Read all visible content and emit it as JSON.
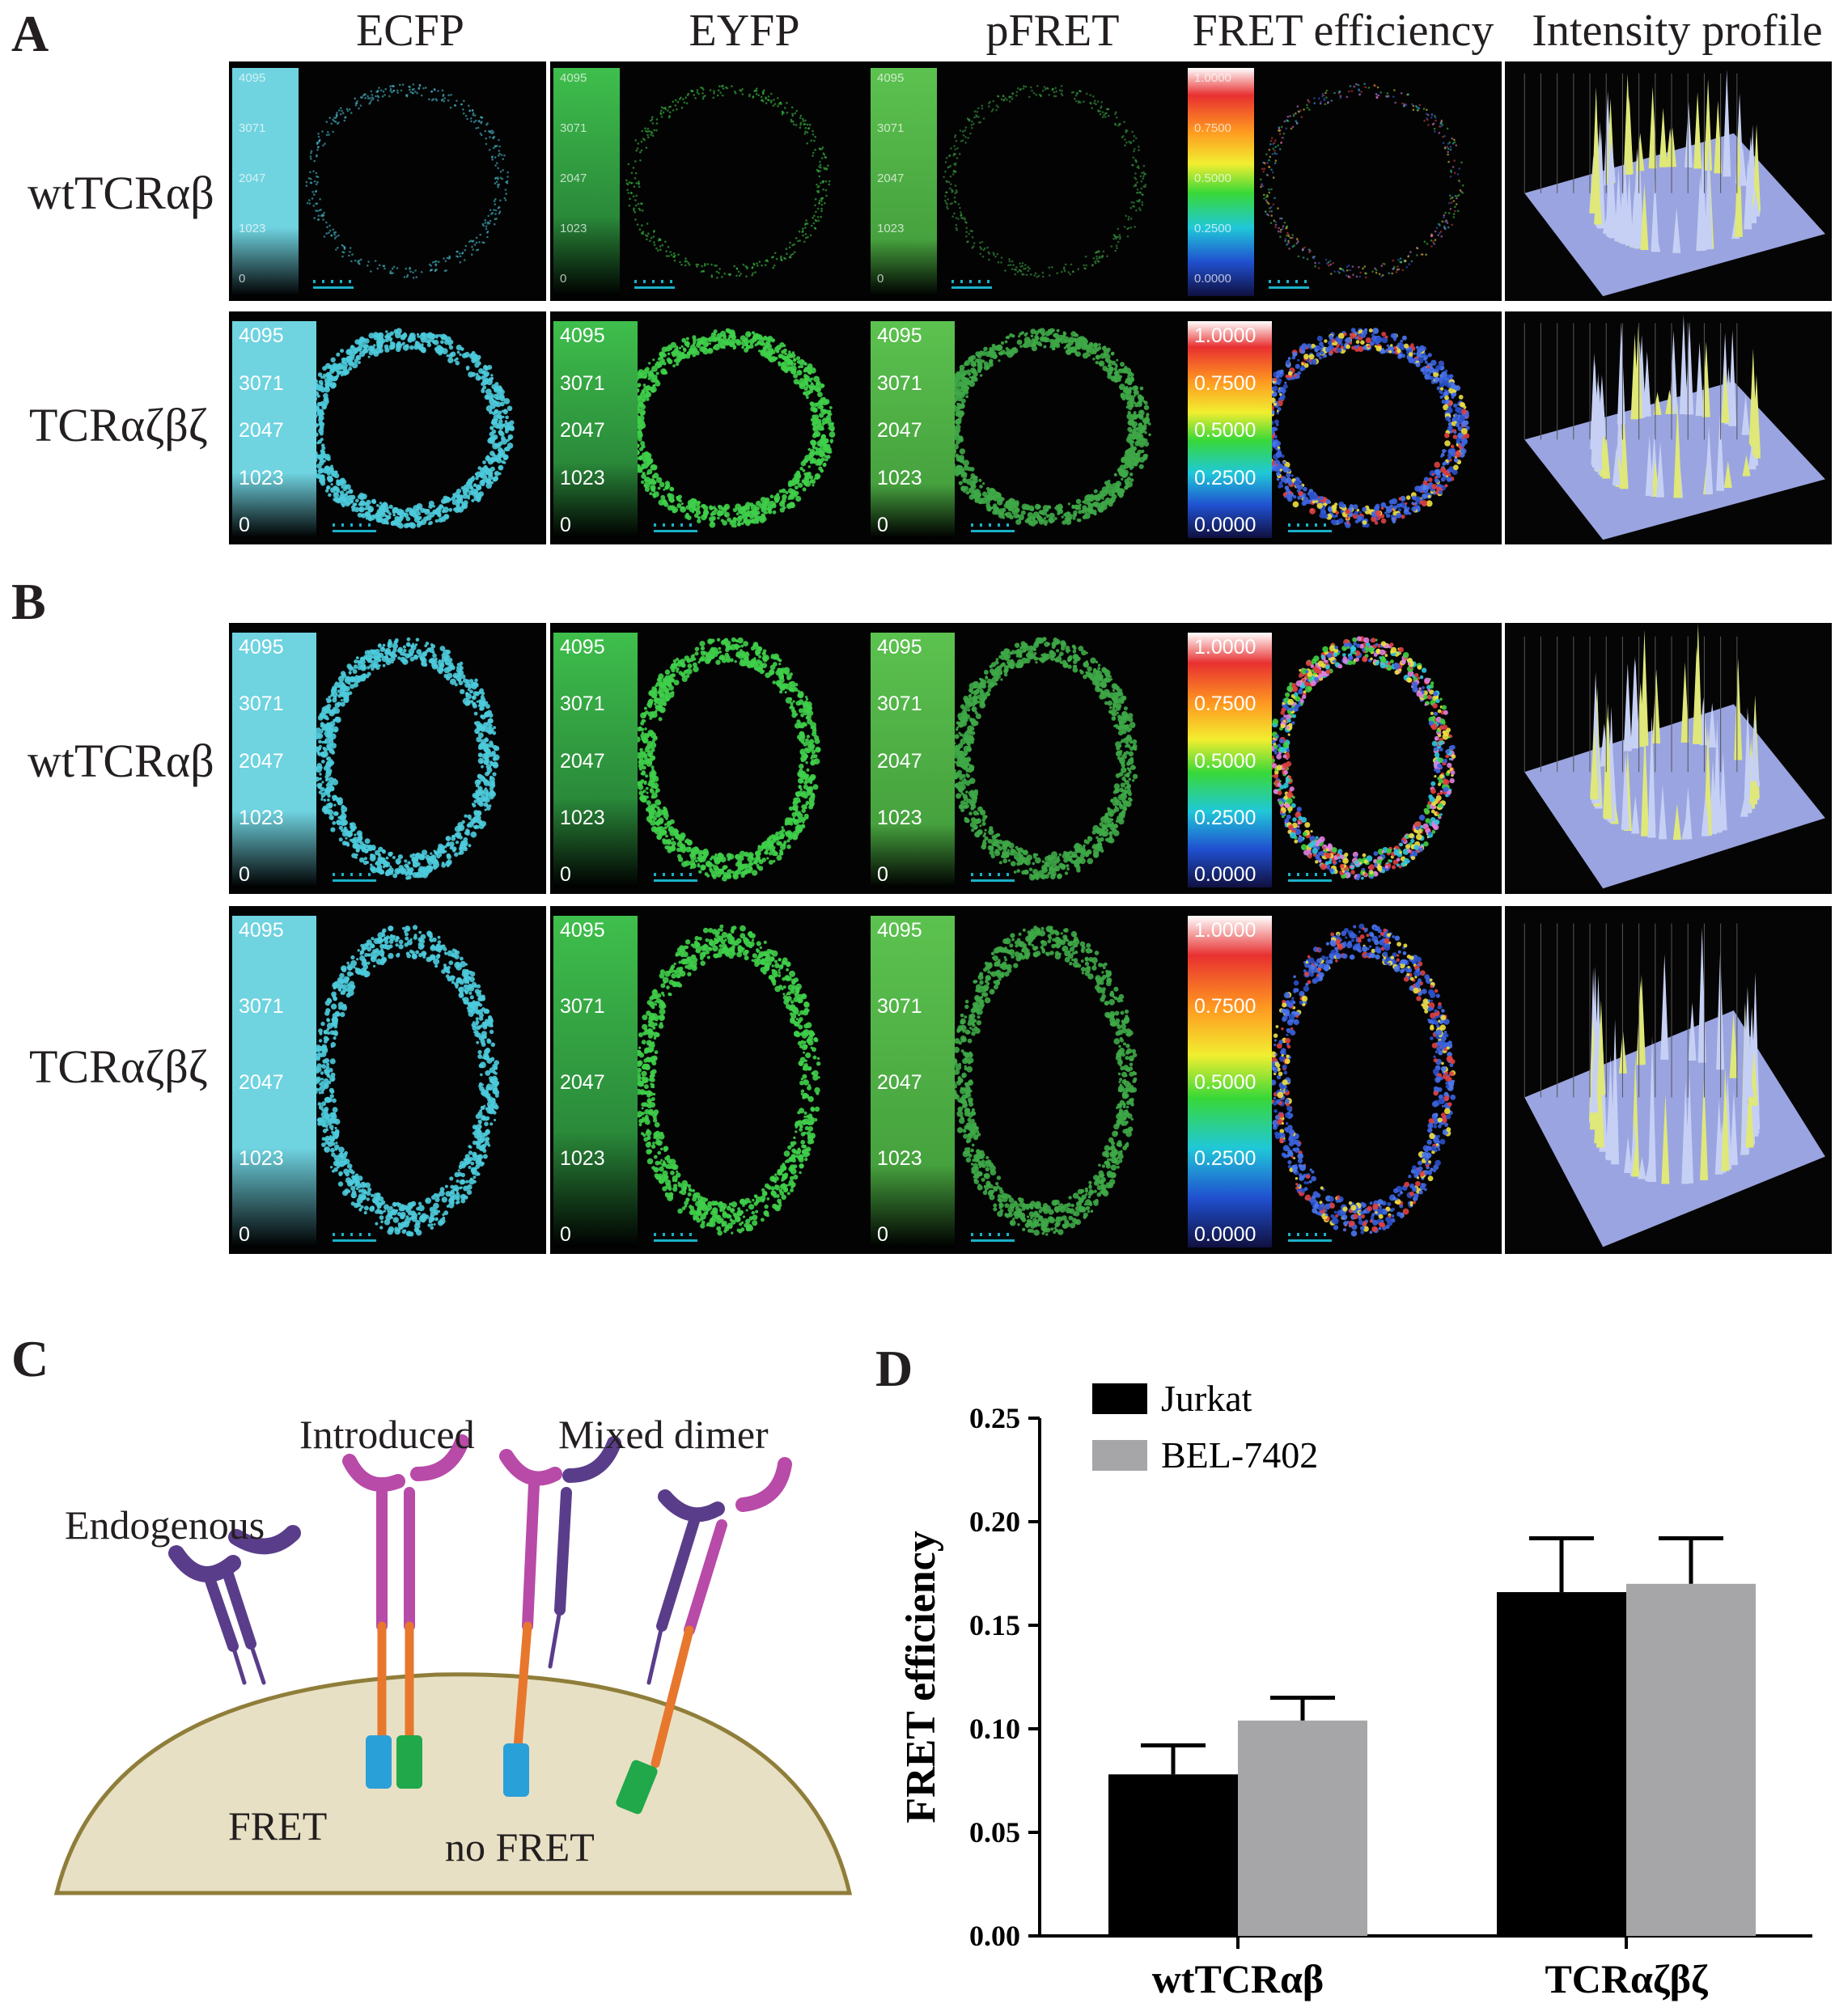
{
  "panels": {
    "a": "A",
    "b": "B",
    "c": "C",
    "d": "D"
  },
  "columns": [
    "ECFP",
    "EYFP",
    "pFRET",
    "FRET efficiency",
    "Intensity profile"
  ],
  "rows": [
    "wtTCRαβ",
    "TCRαζβζ"
  ],
  "lut_ticks": [
    "4095",
    "3071",
    "2047",
    "1023",
    "0"
  ],
  "fret_ticks": [
    "1.0000",
    "0.7500",
    "0.5000",
    "0.2500",
    "0.0000"
  ],
  "colors": {
    "ecfp": "#6fd3e0",
    "eyfp": "#3fbf4c",
    "pfret": "#5cc24f",
    "bar_jurkat": "#000000",
    "bar_bel": "#a6a6a8",
    "cell": "#e8e0c4",
    "endogenous": "#5a3d8a",
    "introduced": "#b84aa8",
    "linker": "#e8772e",
    "cfp": "#2aa0d8",
    "yfp": "#20a84a"
  },
  "panel_c": {
    "labels": {
      "endogenous": "Endogenous",
      "introduced": "Introduced",
      "mixed": "Mixed dimer",
      "fret": "FRET",
      "no_fret": "no FRET"
    },
    "icons": [
      "tcr-receptor-icon",
      "cfp-barrel-icon",
      "yfp-barrel-icon"
    ]
  },
  "chart_data": {
    "type": "bar",
    "categories": [
      "wtTCRαβ",
      "TCRαζβζ"
    ],
    "series": [
      {
        "name": "Jurkat",
        "values": [
          0.078,
          0.166
        ],
        "errors": [
          0.014,
          0.026
        ]
      },
      {
        "name": "BEL-7402",
        "values": [
          0.104,
          0.17
        ],
        "errors": [
          0.011,
          0.022
        ]
      }
    ],
    "ylabel": "FRET efficiency",
    "xlabel": "",
    "ylim": [
      0,
      0.25
    ],
    "yticks": [
      "0.00",
      "0.05",
      "0.10",
      "0.15",
      "0.20",
      "0.25"
    ],
    "legend": "top-left",
    "grid": false
  }
}
